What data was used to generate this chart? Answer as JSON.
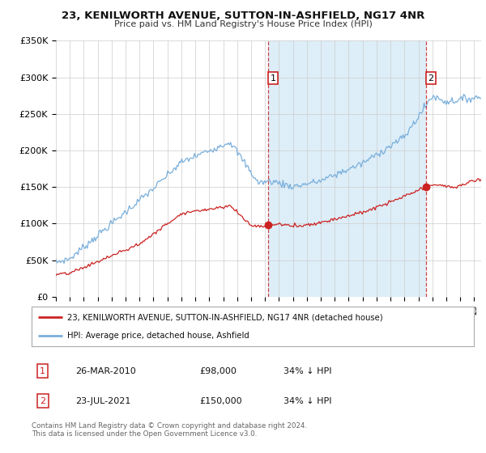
{
  "title": "23, KENILWORTH AVENUE, SUTTON-IN-ASHFIELD, NG17 4NR",
  "subtitle": "Price paid vs. HM Land Registry's House Price Index (HPI)",
  "ylabel_ticks": [
    "£0",
    "£50K",
    "£100K",
    "£150K",
    "£200K",
    "£250K",
    "£300K",
    "£350K"
  ],
  "ylim": [
    0,
    350000
  ],
  "xlim_start": 1995.0,
  "xlim_end": 2025.5,
  "hpi_color": "#7aafdc",
  "hpi_fill_color": "#ddeeff",
  "price_color": "#cc2222",
  "marker1_x": 2010.22,
  "marker1_y": 98000,
  "marker2_x": 2021.55,
  "marker2_y": 150000,
  "legend_line1": "23, KENILWORTH AVENUE, SUTTON-IN-ASHFIELD, NG17 4NR (detached house)",
  "legend_line2": "HPI: Average price, detached house, Ashfield",
  "table_row1": [
    "1",
    "26-MAR-2010",
    "£98,000",
    "34% ↓ HPI"
  ],
  "table_row2": [
    "2",
    "23-JUL-2021",
    "£150,000",
    "34% ↓ HPI"
  ],
  "footnote": "Contains HM Land Registry data © Crown copyright and database right 2024.\nThis data is licensed under the Open Government Licence v3.0.",
  "background_color": "#ffffff",
  "grid_color": "#cccccc",
  "shade_color": "#ddeef8"
}
